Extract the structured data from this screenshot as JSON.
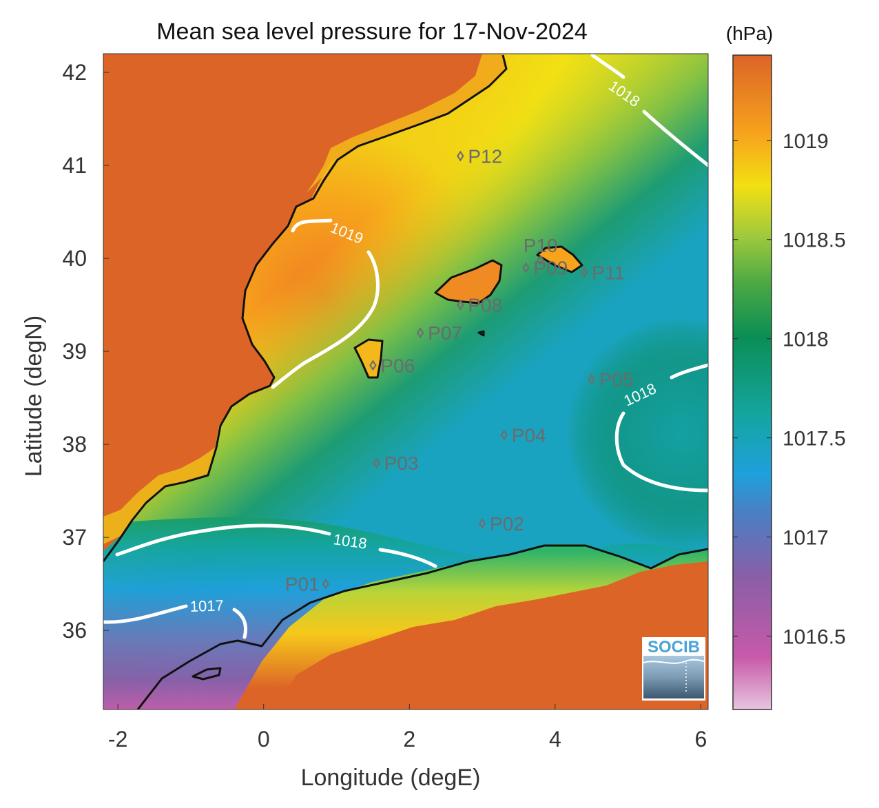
{
  "title": "Mean sea level pressure for 17-Nov-2024",
  "axes": {
    "xlabel": "Longitude (degE)",
    "ylabel": "Latitude (degN)",
    "xlim": [
      -2.2,
      6.1
    ],
    "ylim": [
      35.15,
      42.2
    ],
    "xticks": [
      -2,
      0,
      2,
      4,
      6
    ],
    "yticks": [
      36,
      37,
      38,
      39,
      40,
      41,
      42
    ]
  },
  "colorbar": {
    "unit": "(hPa)",
    "range": [
      1016.13,
      1019.43
    ],
    "ticks": [
      1016.5,
      1017,
      1017.5,
      1018,
      1018.5,
      1019
    ],
    "colors": [
      "#e7c4de",
      "#c75aa9",
      "#8b5ea7",
      "#1fa0dc",
      "#14a5a0",
      "#0b8e55",
      "#9bc83e",
      "#f2e013",
      "#f7a31c",
      "#dc6427"
    ]
  },
  "contours": [
    {
      "label": "1019"
    },
    {
      "label": "1018"
    },
    {
      "label": "1018"
    },
    {
      "label": "1018"
    },
    {
      "label": "1017"
    }
  ],
  "stations": [
    {
      "name": "P01",
      "lon": 0.85,
      "lat": 36.5
    },
    {
      "name": "P02",
      "lon": 3.0,
      "lat": 37.15
    },
    {
      "name": "P03",
      "lon": 1.55,
      "lat": 37.8
    },
    {
      "name": "P04",
      "lon": 3.3,
      "lat": 38.1
    },
    {
      "name": "P05",
      "lon": 4.5,
      "lat": 38.7
    },
    {
      "name": "P06",
      "lon": 1.5,
      "lat": 38.85
    },
    {
      "name": "P07",
      "lon": 2.15,
      "lat": 39.2
    },
    {
      "name": "P08",
      "lon": 2.7,
      "lat": 39.5
    },
    {
      "name": "P09",
      "lon": 3.6,
      "lat": 39.9
    },
    {
      "name": "P10",
      "lon": 3.8,
      "lat": 39.98
    },
    {
      "name": "P11",
      "lon": 4.4,
      "lat": 39.85
    },
    {
      "name": "P12",
      "lon": 2.7,
      "lat": 41.1
    }
  ],
  "logo": {
    "text": "SOCIB"
  }
}
